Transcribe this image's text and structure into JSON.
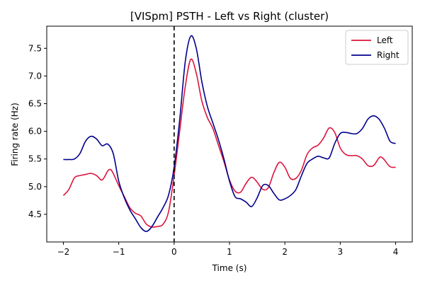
{
  "chart_data": {
    "type": "line",
    "title": "[VISpm] PSTH - Left vs Right (cluster)",
    "xlabel": "Time (s)",
    "ylabel": "Firing rate (Hz)",
    "xlim": [
      -2.3,
      4.3
    ],
    "ylim": [
      4.0,
      7.9
    ],
    "xticks": [
      -2,
      -1,
      0,
      1,
      2,
      3,
      4
    ],
    "yticks": [
      4.5,
      5.0,
      5.5,
      6.0,
      6.5,
      7.0,
      7.5
    ],
    "grid": false,
    "legend_position": "top-right",
    "vline": {
      "x": 0,
      "style": "dashed",
      "color": "#000000"
    },
    "series": [
      {
        "name": "Left",
        "color": "#dc143c",
        "points": [
          [
            -2.0,
            4.84
          ],
          [
            -1.9,
            4.95
          ],
          [
            -1.8,
            5.16
          ],
          [
            -1.7,
            5.2
          ],
          [
            -1.6,
            5.22
          ],
          [
            -1.5,
            5.24
          ],
          [
            -1.4,
            5.2
          ],
          [
            -1.3,
            5.12
          ],
          [
            -1.2,
            5.28
          ],
          [
            -1.15,
            5.31
          ],
          [
            -1.1,
            5.24
          ],
          [
            -1.0,
            5.02
          ],
          [
            -0.9,
            4.82
          ],
          [
            -0.8,
            4.62
          ],
          [
            -0.7,
            4.52
          ],
          [
            -0.6,
            4.47
          ],
          [
            -0.5,
            4.32
          ],
          [
            -0.4,
            4.27
          ],
          [
            -0.3,
            4.28
          ],
          [
            -0.2,
            4.32
          ],
          [
            -0.1,
            4.55
          ],
          [
            0.0,
            5.2
          ],
          [
            0.1,
            6.0
          ],
          [
            0.2,
            6.8
          ],
          [
            0.3,
            7.3
          ],
          [
            0.4,
            7.05
          ],
          [
            0.5,
            6.55
          ],
          [
            0.6,
            6.25
          ],
          [
            0.7,
            6.05
          ],
          [
            0.8,
            5.75
          ],
          [
            0.9,
            5.45
          ],
          [
            1.0,
            5.12
          ],
          [
            1.1,
            4.92
          ],
          [
            1.2,
            4.9
          ],
          [
            1.3,
            5.06
          ],
          [
            1.4,
            5.17
          ],
          [
            1.5,
            5.08
          ],
          [
            1.6,
            4.95
          ],
          [
            1.7,
            4.98
          ],
          [
            1.8,
            5.25
          ],
          [
            1.9,
            5.44
          ],
          [
            2.0,
            5.35
          ],
          [
            2.1,
            5.15
          ],
          [
            2.2,
            5.15
          ],
          [
            2.3,
            5.3
          ],
          [
            2.4,
            5.58
          ],
          [
            2.5,
            5.7
          ],
          [
            2.6,
            5.75
          ],
          [
            2.7,
            5.88
          ],
          [
            2.8,
            6.06
          ],
          [
            2.9,
            5.98
          ],
          [
            3.0,
            5.7
          ],
          [
            3.1,
            5.58
          ],
          [
            3.2,
            5.56
          ],
          [
            3.3,
            5.56
          ],
          [
            3.4,
            5.5
          ],
          [
            3.5,
            5.38
          ],
          [
            3.6,
            5.38
          ],
          [
            3.7,
            5.52
          ],
          [
            3.75,
            5.53
          ],
          [
            3.8,
            5.48
          ],
          [
            3.9,
            5.36
          ],
          [
            4.0,
            5.35
          ]
        ]
      },
      {
        "name": "Right",
        "color": "#00008b",
        "points": [
          [
            -2.0,
            5.49
          ],
          [
            -1.9,
            5.49
          ],
          [
            -1.8,
            5.5
          ],
          [
            -1.7,
            5.6
          ],
          [
            -1.6,
            5.82
          ],
          [
            -1.5,
            5.91
          ],
          [
            -1.4,
            5.86
          ],
          [
            -1.3,
            5.74
          ],
          [
            -1.2,
            5.77
          ],
          [
            -1.1,
            5.6
          ],
          [
            -1.0,
            5.1
          ],
          [
            -0.9,
            4.8
          ],
          [
            -0.8,
            4.58
          ],
          [
            -0.7,
            4.42
          ],
          [
            -0.6,
            4.26
          ],
          [
            -0.5,
            4.19
          ],
          [
            -0.4,
            4.28
          ],
          [
            -0.3,
            4.45
          ],
          [
            -0.2,
            4.62
          ],
          [
            -0.1,
            4.85
          ],
          [
            0.0,
            5.35
          ],
          [
            0.1,
            6.2
          ],
          [
            0.2,
            7.25
          ],
          [
            0.3,
            7.72
          ],
          [
            0.4,
            7.5
          ],
          [
            0.5,
            6.9
          ],
          [
            0.6,
            6.45
          ],
          [
            0.7,
            6.15
          ],
          [
            0.8,
            5.85
          ],
          [
            0.9,
            5.5
          ],
          [
            1.0,
            5.1
          ],
          [
            1.1,
            4.82
          ],
          [
            1.2,
            4.78
          ],
          [
            1.3,
            4.72
          ],
          [
            1.4,
            4.64
          ],
          [
            1.5,
            4.8
          ],
          [
            1.6,
            5.02
          ],
          [
            1.7,
            5.02
          ],
          [
            1.8,
            4.88
          ],
          [
            1.9,
            4.76
          ],
          [
            2.0,
            4.78
          ],
          [
            2.1,
            4.84
          ],
          [
            2.2,
            4.95
          ],
          [
            2.3,
            5.2
          ],
          [
            2.4,
            5.42
          ],
          [
            2.5,
            5.5
          ],
          [
            2.6,
            5.55
          ],
          [
            2.7,
            5.52
          ],
          [
            2.8,
            5.52
          ],
          [
            2.9,
            5.78
          ],
          [
            3.0,
            5.96
          ],
          [
            3.1,
            5.98
          ],
          [
            3.2,
            5.96
          ],
          [
            3.3,
            5.96
          ],
          [
            3.4,
            6.05
          ],
          [
            3.5,
            6.22
          ],
          [
            3.6,
            6.28
          ],
          [
            3.7,
            6.22
          ],
          [
            3.8,
            6.05
          ],
          [
            3.9,
            5.82
          ],
          [
            4.0,
            5.78
          ]
        ]
      }
    ]
  }
}
